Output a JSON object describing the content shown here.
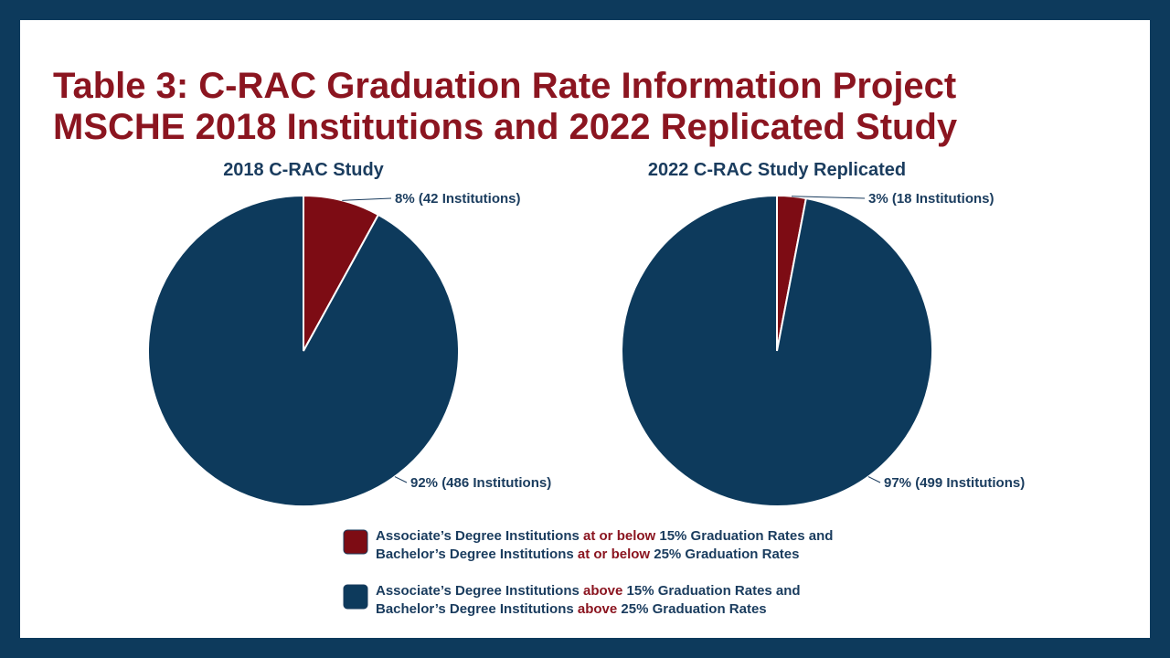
{
  "title": [
    "Table 3: C-RAC Graduation Rate Information Project",
    "MSCHE 2018 Institutions and 2022 Replicated Study"
  ],
  "chart_data": [
    {
      "type": "pie",
      "title": "2018 C-RAC Study",
      "values": [
        8,
        92
      ],
      "value_labels": [
        "8% (42 Institutions)",
        "92% (486 Institutions)"
      ],
      "colors": [
        "#7d0c14",
        "#0d3a5c"
      ]
    },
    {
      "type": "pie",
      "title": "2022 C-RAC Study Replicated",
      "values": [
        3,
        97
      ],
      "value_labels": [
        "3% (18 Institutions)",
        "97% (499 Institutions)"
      ],
      "colors": [
        "#7d0c14",
        "#0d3a5c"
      ]
    }
  ],
  "legend": [
    {
      "color": "#7d0c14",
      "lines": [
        [
          "Associate’s Degree Institutions ",
          "at or below",
          " 15% Graduation Rates and"
        ],
        [
          "Bachelor’s Degree Institutions ",
          "at or below",
          " 25% Graduation Rates"
        ]
      ]
    },
    {
      "color": "#0d3a5c",
      "lines": [
        [
          "Associate’s Degree Institutions ",
          "above",
          " 15% Graduation Rates and"
        ],
        [
          "Bachelor’s Degree Institutions ",
          "above",
          " 25% Graduation Rates"
        ]
      ]
    }
  ],
  "highlight_color": "#8b1520"
}
